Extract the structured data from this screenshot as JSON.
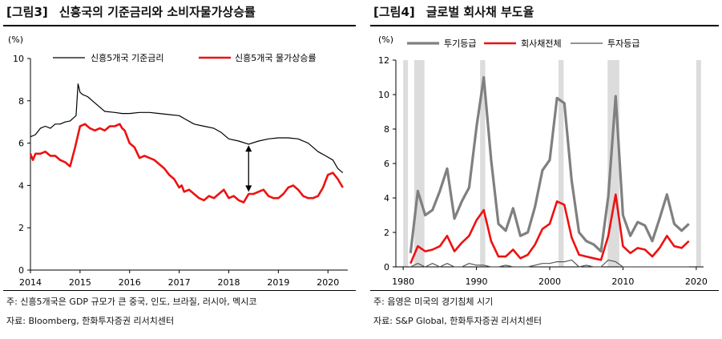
{
  "left": {
    "tag": "[그림3]",
    "title": "신흥국의 기준금리와 소비자물가상승률",
    "note": "주: 신흥5개국은 GDP 규모가 큰 중국, 인도, 브라질, 러시아, 멕시코",
    "source": "자료: Bloomberg, 한화투자증권 리서치센터"
  },
  "right": {
    "tag": "[그림4]",
    "title": "글로벌 회사채 부도율",
    "note": "주: 음영은 미국의 경기침체 시기",
    "source": "자료: S&P Global, 한화투자증권 리서치센터"
  },
  "colors": {
    "policy": "#000000",
    "cpi": "#ee1111",
    "speculative": "#808080",
    "all": "#ee1111",
    "investment": "#555555",
    "shade": "#dcdcdc"
  },
  "chart_data": [
    {
      "type": "line",
      "unit": "(%)",
      "xlim": [
        2014,
        2020.4
      ],
      "ylim": [
        0,
        10
      ],
      "x_ticks": [
        "2014",
        "2015",
        "2016",
        "2017",
        "2018",
        "2019",
        "2020"
      ],
      "y_ticks": [
        "0",
        "2",
        "4",
        "6",
        "8",
        "10"
      ],
      "annotation": "double-headed arrow at 2018.4 between 3.7 and 5.9",
      "series": [
        {
          "name": "신흥5개국  기준금리",
          "x": [
            2014.0,
            2014.1,
            2014.2,
            2014.3,
            2014.4,
            2014.5,
            2014.6,
            2014.7,
            2014.8,
            2014.92,
            2014.96,
            2015.0,
            2015.05,
            2015.15,
            2015.3,
            2015.45,
            2015.5,
            2015.7,
            2015.85,
            2016.0,
            2016.2,
            2016.4,
            2016.6,
            2016.8,
            2017.0,
            2017.15,
            2017.3,
            2017.5,
            2017.7,
            2017.85,
            2018.0,
            2018.2,
            2018.4,
            2018.6,
            2018.8,
            2019.0,
            2019.2,
            2019.4,
            2019.6,
            2019.8,
            2019.95,
            2020.1,
            2020.2,
            2020.3
          ],
          "values": [
            6.3,
            6.4,
            6.7,
            6.8,
            6.7,
            6.9,
            6.9,
            7.0,
            7.05,
            7.3,
            8.8,
            8.4,
            8.3,
            8.2,
            7.9,
            7.6,
            7.5,
            7.45,
            7.4,
            7.4,
            7.45,
            7.45,
            7.4,
            7.35,
            7.3,
            7.1,
            6.9,
            6.8,
            6.7,
            6.5,
            6.2,
            6.1,
            5.95,
            6.1,
            6.2,
            6.25,
            6.25,
            6.2,
            6.0,
            5.6,
            5.4,
            5.2,
            4.8,
            4.6
          ]
        },
        {
          "name": "신흥5개국  물가상승률",
          "x": [
            2014.0,
            2014.05,
            2014.1,
            2014.2,
            2014.3,
            2014.4,
            2014.5,
            2014.6,
            2014.7,
            2014.8,
            2014.9,
            2015.0,
            2015.1,
            2015.15,
            2015.2,
            2015.3,
            2015.4,
            2015.5,
            2015.6,
            2015.7,
            2015.8,
            2015.85,
            2015.9,
            2016.0,
            2016.1,
            2016.2,
            2016.3,
            2016.4,
            2016.5,
            2016.6,
            2016.7,
            2016.8,
            2016.9,
            2017.0,
            2017.05,
            2017.1,
            2017.2,
            2017.3,
            2017.4,
            2017.5,
            2017.6,
            2017.7,
            2017.8,
            2017.9,
            2018.0,
            2018.1,
            2018.2,
            2018.3,
            2018.4,
            2018.5,
            2018.6,
            2018.7,
            2018.8,
            2018.9,
            2019.0,
            2019.1,
            2019.2,
            2019.3,
            2019.4,
            2019.5,
            2019.6,
            2019.7,
            2019.8,
            2019.9,
            2020.0,
            2020.1,
            2020.2,
            2020.3
          ],
          "values": [
            5.5,
            5.2,
            5.5,
            5.5,
            5.6,
            5.4,
            5.4,
            5.2,
            5.1,
            4.9,
            5.8,
            6.8,
            6.9,
            6.8,
            6.7,
            6.6,
            6.7,
            6.6,
            6.8,
            6.8,
            6.9,
            6.7,
            6.6,
            6.0,
            5.8,
            5.3,
            5.4,
            5.3,
            5.2,
            5.0,
            4.8,
            4.5,
            4.3,
            3.9,
            4.0,
            3.7,
            3.8,
            3.6,
            3.4,
            3.3,
            3.5,
            3.4,
            3.6,
            3.8,
            3.4,
            3.5,
            3.3,
            3.2,
            3.6,
            3.6,
            3.7,
            3.8,
            3.5,
            3.4,
            3.4,
            3.6,
            3.9,
            4.0,
            3.8,
            3.5,
            3.4,
            3.4,
            3.5,
            3.9,
            4.5,
            4.6,
            4.3,
            3.9
          ]
        }
      ]
    },
    {
      "type": "line",
      "unit": "(%)",
      "xlim": [
        1979,
        2021
      ],
      "ylim": [
        0,
        12
      ],
      "x_ticks": [
        "1980",
        "1990",
        "2000",
        "2010",
        "2020"
      ],
      "y_ticks": [
        "0",
        "2",
        "4",
        "6",
        "8",
        "10",
        "12"
      ],
      "recessions": [
        [
          1980,
          1980.6
        ],
        [
          1981.5,
          1982.9
        ],
        [
          1990.5,
          1991.2
        ],
        [
          2001.2,
          2001.9
        ],
        [
          2007.9,
          2009.5
        ],
        [
          2020.0,
          2020.5
        ]
      ],
      "series": [
        {
          "name": "투기등급",
          "x": [
            1981,
            1982,
            1983,
            1984,
            1985,
            1986,
            1987,
            1988,
            1989,
            1990,
            1991,
            1992,
            1993,
            1994,
            1995,
            1996,
            1997,
            1998,
            1999,
            2000,
            2001,
            2002,
            2003,
            2004,
            2005,
            2006,
            2007,
            2008,
            2009,
            2010,
            2011,
            2012,
            2013,
            2014,
            2015,
            2016,
            2017,
            2018,
            2019
          ],
          "values": [
            0.8,
            4.4,
            3.0,
            3.3,
            4.4,
            5.7,
            2.8,
            3.8,
            4.6,
            8.1,
            11.0,
            6.2,
            2.5,
            2.1,
            3.4,
            1.8,
            2.0,
            3.5,
            5.6,
            6.2,
            9.8,
            9.5,
            5.0,
            2.0,
            1.5,
            1.3,
            0.9,
            4.1,
            9.9,
            3.0,
            1.8,
            2.6,
            2.4,
            1.5,
            2.8,
            4.2,
            2.5,
            2.1,
            2.5
          ]
        },
        {
          "name": "회사채전체",
          "x": [
            1981,
            1982,
            1983,
            1984,
            1985,
            1986,
            1987,
            1988,
            1989,
            1990,
            1991,
            1992,
            1993,
            1994,
            1995,
            1996,
            1997,
            1998,
            1999,
            2000,
            2001,
            2002,
            2003,
            2004,
            2005,
            2006,
            2007,
            2008,
            2009,
            2010,
            2011,
            2012,
            2013,
            2014,
            2015,
            2016,
            2017,
            2018,
            2019
          ],
          "values": [
            0.2,
            1.2,
            0.9,
            1.0,
            1.2,
            1.8,
            0.9,
            1.4,
            1.8,
            2.7,
            3.3,
            1.5,
            0.6,
            0.6,
            1.0,
            0.5,
            0.7,
            1.3,
            2.2,
            2.5,
            3.8,
            3.6,
            1.7,
            0.7,
            0.6,
            0.5,
            0.4,
            1.8,
            4.2,
            1.2,
            0.8,
            1.1,
            1.0,
            0.6,
            1.1,
            1.8,
            1.2,
            1.1,
            1.5
          ]
        },
        {
          "name": "투자등급",
          "x": [
            1981,
            1982,
            1983,
            1984,
            1985,
            1986,
            1987,
            1988,
            1989,
            1990,
            1991,
            1992,
            1993,
            1994,
            1995,
            1996,
            1997,
            1998,
            1999,
            2000,
            2001,
            2002,
            2003,
            2004,
            2005,
            2006,
            2007,
            2008,
            2009,
            2010,
            2011,
            2012,
            2013,
            2014,
            2015,
            2016,
            2017,
            2018,
            2019
          ],
          "values": [
            0.0,
            0.2,
            0.0,
            0.2,
            0.0,
            0.2,
            0.0,
            0.0,
            0.2,
            0.1,
            0.1,
            0.0,
            0.0,
            0.1,
            0.0,
            0.0,
            0.0,
            0.1,
            0.2,
            0.2,
            0.3,
            0.3,
            0.4,
            0.0,
            0.1,
            0.0,
            0.0,
            0.4,
            0.3,
            0.0,
            0.0,
            0.0,
            0.0,
            0.0,
            0.0,
            0.0,
            0.0,
            0.0,
            0.0
          ]
        }
      ]
    }
  ]
}
